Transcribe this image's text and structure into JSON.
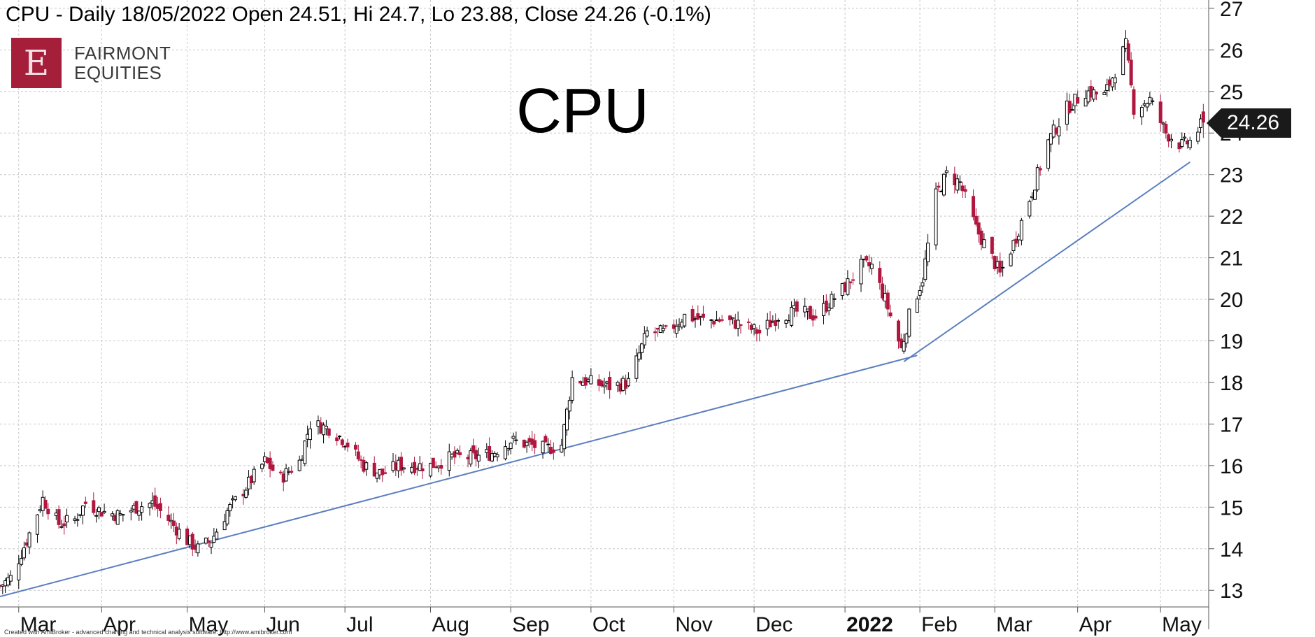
{
  "header": {
    "text": "CPU - Daily 18/05/2022 Open 24.51, Hi 24.7, Lo 23.88, Close 24.26 (-0.1%)"
  },
  "logo": {
    "letter": "E",
    "line1": "FAIRMONT",
    "line2": "EQUITIES"
  },
  "overlay_title": "CPU",
  "last_price_tag": "24.26",
  "footer_note": "Created with AmiBroker - advanced charting and technical analysis software. http://www.amibroker.com",
  "colors": {
    "up_candle": "#ffffff",
    "down_candle": "#b0173f",
    "trendline": "#5b7fc0",
    "grid": "#c8c8c8",
    "logo_bg": "#a51f3b"
  },
  "chart_data": {
    "type": "candlestick",
    "title": "CPU",
    "ylim": [
      12.6,
      27.2
    ],
    "y_ticks": [
      13,
      14,
      15,
      16,
      17,
      18,
      19,
      20,
      21,
      22,
      23,
      24,
      25,
      26,
      27
    ],
    "x_start": "2021-02-22",
    "x_end": "2022-05-20",
    "x_ticks": [
      {
        "label": "Mar",
        "date": "2021-03-01"
      },
      {
        "label": "Apr",
        "date": "2021-04-01"
      },
      {
        "label": "May",
        "date": "2021-05-03"
      },
      {
        "label": "Jun",
        "date": "2021-06-01"
      },
      {
        "label": "Jul",
        "date": "2021-07-01"
      },
      {
        "label": "Aug",
        "date": "2021-08-02"
      },
      {
        "label": "Sep",
        "date": "2021-09-01"
      },
      {
        "label": "Oct",
        "date": "2021-10-01"
      },
      {
        "label": "Nov",
        "date": "2021-11-01"
      },
      {
        "label": "Dec",
        "date": "2021-12-01"
      },
      {
        "label": "2022",
        "date": "2022-01-04",
        "bold": true
      },
      {
        "label": "Feb",
        "date": "2022-02-01"
      },
      {
        "label": "Mar",
        "date": "2022-03-01"
      },
      {
        "label": "Apr",
        "date": "2022-04-01"
      },
      {
        "label": "May",
        "date": "2022-05-02"
      }
    ],
    "grid": true,
    "last_close": 24.26,
    "price_path": [
      [
        "2021-02-22",
        13.1
      ],
      [
        "2021-02-26",
        13.3
      ],
      [
        "2021-03-04",
        14.2
      ],
      [
        "2021-03-10",
        15.2
      ],
      [
        "2021-03-16",
        14.6
      ],
      [
        "2021-03-22",
        14.7
      ],
      [
        "2021-03-26",
        15.1
      ],
      [
        "2021-04-01",
        14.9
      ],
      [
        "2021-04-08",
        14.8
      ],
      [
        "2021-04-14",
        15.0
      ],
      [
        "2021-04-20",
        15.1
      ],
      [
        "2021-04-26",
        14.7
      ],
      [
        "2021-05-03",
        14.2
      ],
      [
        "2021-05-07",
        14.0
      ],
      [
        "2021-05-12",
        14.2
      ],
      [
        "2021-05-18",
        14.9
      ],
      [
        "2021-05-24",
        15.4
      ],
      [
        "2021-06-01",
        16.1
      ],
      [
        "2021-06-07",
        15.7
      ],
      [
        "2021-06-14",
        16.1
      ],
      [
        "2021-06-18",
        17.0
      ],
      [
        "2021-06-25",
        16.9
      ],
      [
        "2021-07-01",
        16.6
      ],
      [
        "2021-07-08",
        16.0
      ],
      [
        "2021-07-15",
        15.8
      ],
      [
        "2021-07-21",
        16.0
      ],
      [
        "2021-07-27",
        16.0
      ],
      [
        "2021-08-02",
        16.0
      ],
      [
        "2021-08-10",
        16.2
      ],
      [
        "2021-08-18",
        16.2
      ],
      [
        "2021-08-25",
        16.3
      ],
      [
        "2021-09-01",
        16.6
      ],
      [
        "2021-09-08",
        16.5
      ],
      [
        "2021-09-14",
        16.4
      ],
      [
        "2021-09-20",
        16.5
      ],
      [
        "2021-09-24",
        18.1
      ],
      [
        "2021-10-01",
        18.0
      ],
      [
        "2021-10-08",
        17.9
      ],
      [
        "2021-10-15",
        18.0
      ],
      [
        "2021-10-22",
        19.2
      ],
      [
        "2021-10-29",
        19.2
      ],
      [
        "2021-11-05",
        19.6
      ],
      [
        "2021-11-12",
        19.5
      ],
      [
        "2021-11-19",
        19.5
      ],
      [
        "2021-11-26",
        19.4
      ],
      [
        "2021-12-03",
        19.2
      ],
      [
        "2021-12-10",
        19.6
      ],
      [
        "2021-12-17",
        19.7
      ],
      [
        "2021-12-24",
        19.6
      ],
      [
        "2022-01-04",
        20.3
      ],
      [
        "2022-01-10",
        20.8
      ],
      [
        "2022-01-14",
        20.8
      ],
      [
        "2022-01-19",
        20.0
      ],
      [
        "2022-01-25",
        18.8
      ],
      [
        "2022-01-28",
        19.6
      ],
      [
        "2022-02-02",
        20.5
      ],
      [
        "2022-02-07",
        22.5
      ],
      [
        "2022-02-11",
        23.0
      ],
      [
        "2022-02-16",
        22.8
      ],
      [
        "2022-02-22",
        21.7
      ],
      [
        "2022-02-28",
        21.0
      ],
      [
        "2022-03-03",
        20.6
      ],
      [
        "2022-03-09",
        21.5
      ],
      [
        "2022-03-15",
        22.6
      ],
      [
        "2022-03-21",
        23.8
      ],
      [
        "2022-03-28",
        24.6
      ],
      [
        "2022-04-04",
        25.0
      ],
      [
        "2022-04-11",
        24.9
      ],
      [
        "2022-04-19",
        26.1
      ],
      [
        "2022-04-22",
        24.6
      ],
      [
        "2022-04-28",
        24.8
      ],
      [
        "2022-05-04",
        24.0
      ],
      [
        "2022-05-10",
        23.7
      ],
      [
        "2022-05-13",
        23.8
      ],
      [
        "2022-05-18",
        24.26
      ]
    ],
    "trendlines": [
      {
        "points": [
          [
            "2021-02-22",
            12.85
          ],
          [
            "2022-01-31",
            18.65
          ]
        ]
      },
      {
        "points": [
          [
            "2022-01-26",
            18.5
          ],
          [
            "2022-05-13",
            23.3
          ]
        ]
      }
    ]
  }
}
